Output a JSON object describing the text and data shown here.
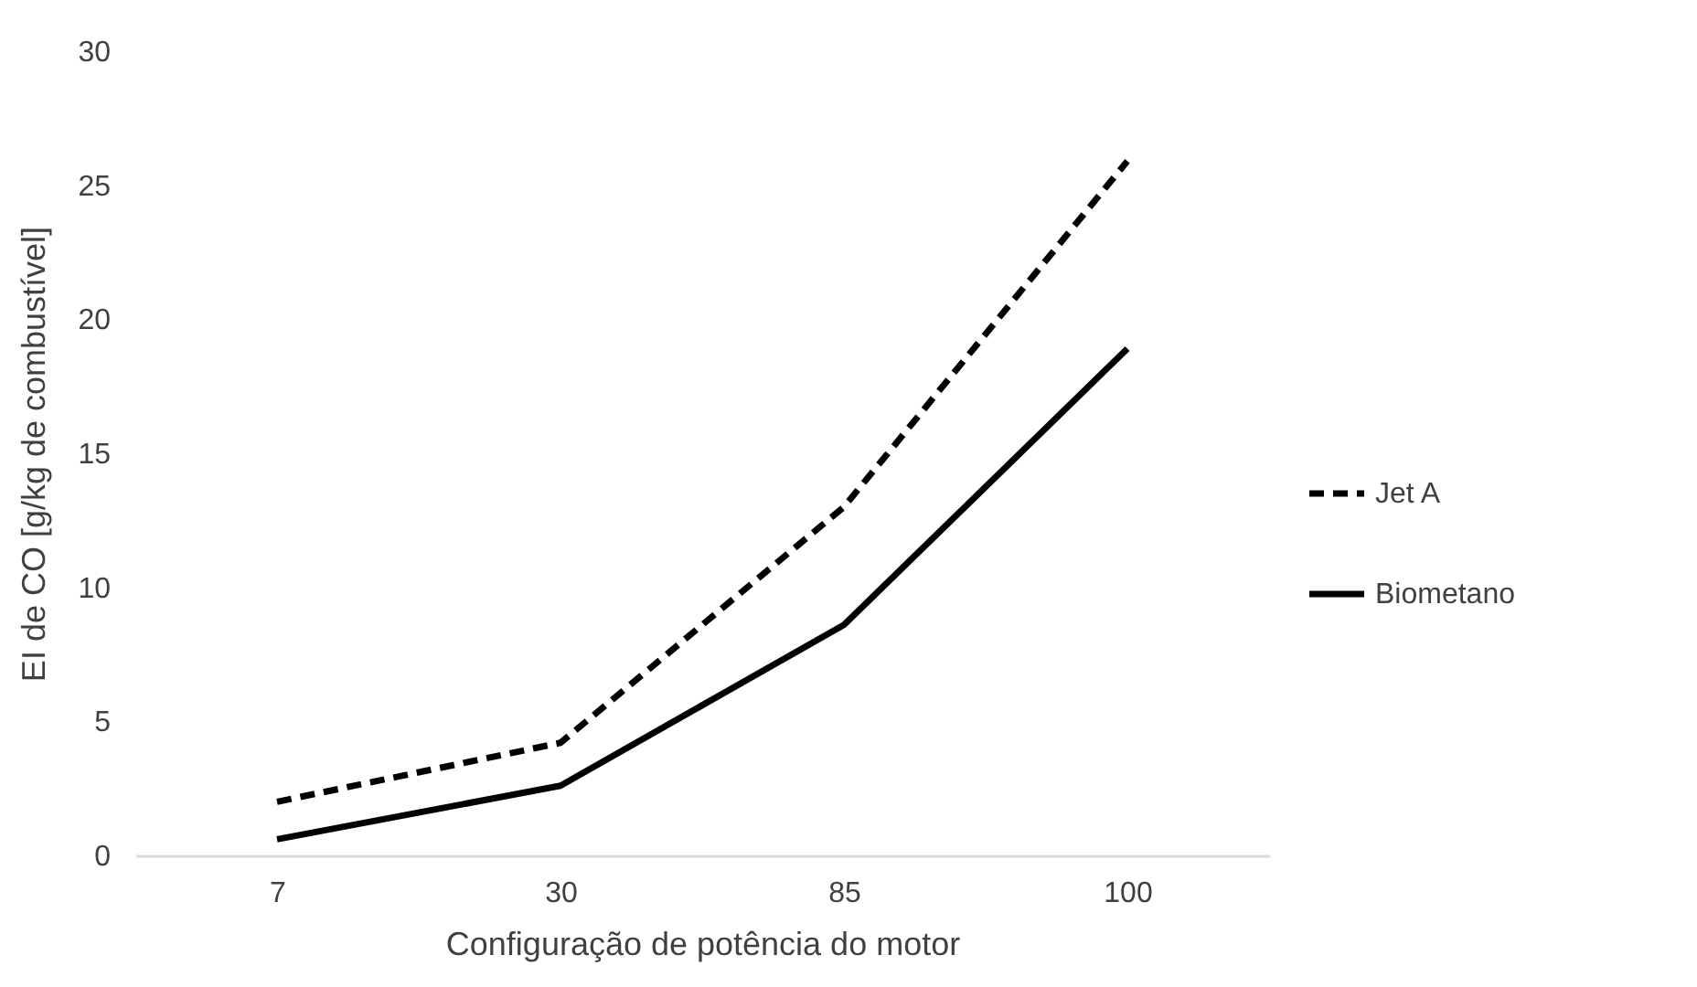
{
  "chart_data": {
    "type": "line",
    "xlabel": "Configuração de potência do motor",
    "ylabel": "EI de CO [g/kg de combustível]",
    "categories": [
      "7",
      "30",
      "85",
      "100"
    ],
    "series": [
      {
        "name": "Jet A",
        "color": "#000000",
        "line_style": "dashed",
        "values": [
          2.0,
          4.2,
          13.0,
          25.9
        ]
      },
      {
        "name": "Biometano",
        "color": "#000000",
        "line_style": "solid",
        "values": [
          0.6,
          2.6,
          8.6,
          18.9
        ]
      }
    ],
    "ylim": [
      0,
      30
    ],
    "yticks": [
      0,
      5,
      10,
      15,
      20,
      25,
      30
    ],
    "grid": false,
    "legend": "right",
    "marker": "none"
  }
}
